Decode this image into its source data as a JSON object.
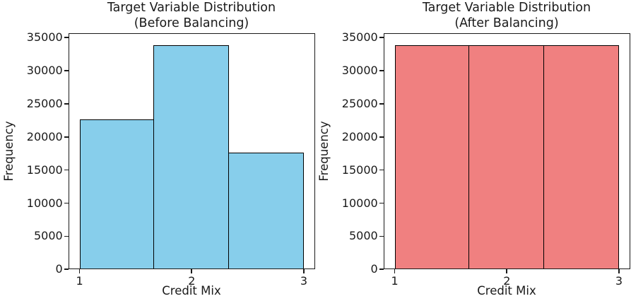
{
  "figure": {
    "background": "#ffffff",
    "text_color": "#1a1a1a"
  },
  "chart_data": [
    {
      "type": "bar",
      "chart_kind": "histogram",
      "title": "Target Variable Distribution",
      "subtitle": "(Before Balancing)",
      "xlabel": "Credit Mix",
      "ylabel": "Frequency",
      "categories": [
        "1",
        "2",
        "3"
      ],
      "values": [
        22600,
        33900,
        17600
      ],
      "bin_edges": [
        1,
        1.6667,
        2.3333,
        3
      ],
      "bar_color": "#87CEEB",
      "edge_color": "#000000",
      "xlim": [
        0.9,
        3.1
      ],
      "ylim": [
        0,
        35700
      ],
      "yticks": [
        0,
        5000,
        10000,
        15000,
        20000,
        25000,
        30000,
        35000
      ],
      "xticks": [
        1,
        2,
        3
      ],
      "grid": false,
      "legend": "none"
    },
    {
      "type": "bar",
      "chart_kind": "histogram",
      "title": "Target Variable Distribution",
      "subtitle": "(After Balancing)",
      "xlabel": "Credit Mix",
      "ylabel": "Frequency",
      "categories": [
        "1",
        "2",
        "3"
      ],
      "values": [
        33900,
        33900,
        33900
      ],
      "bin_edges": [
        1,
        1.6667,
        2.3333,
        3
      ],
      "bar_color": "#F08080",
      "edge_color": "#000000",
      "xlim": [
        0.9,
        3.1
      ],
      "ylim": [
        0,
        35700
      ],
      "yticks": [
        0,
        5000,
        10000,
        15000,
        20000,
        25000,
        30000,
        35000
      ],
      "xticks": [
        1,
        2,
        3
      ],
      "grid": false,
      "legend": "none"
    }
  ]
}
